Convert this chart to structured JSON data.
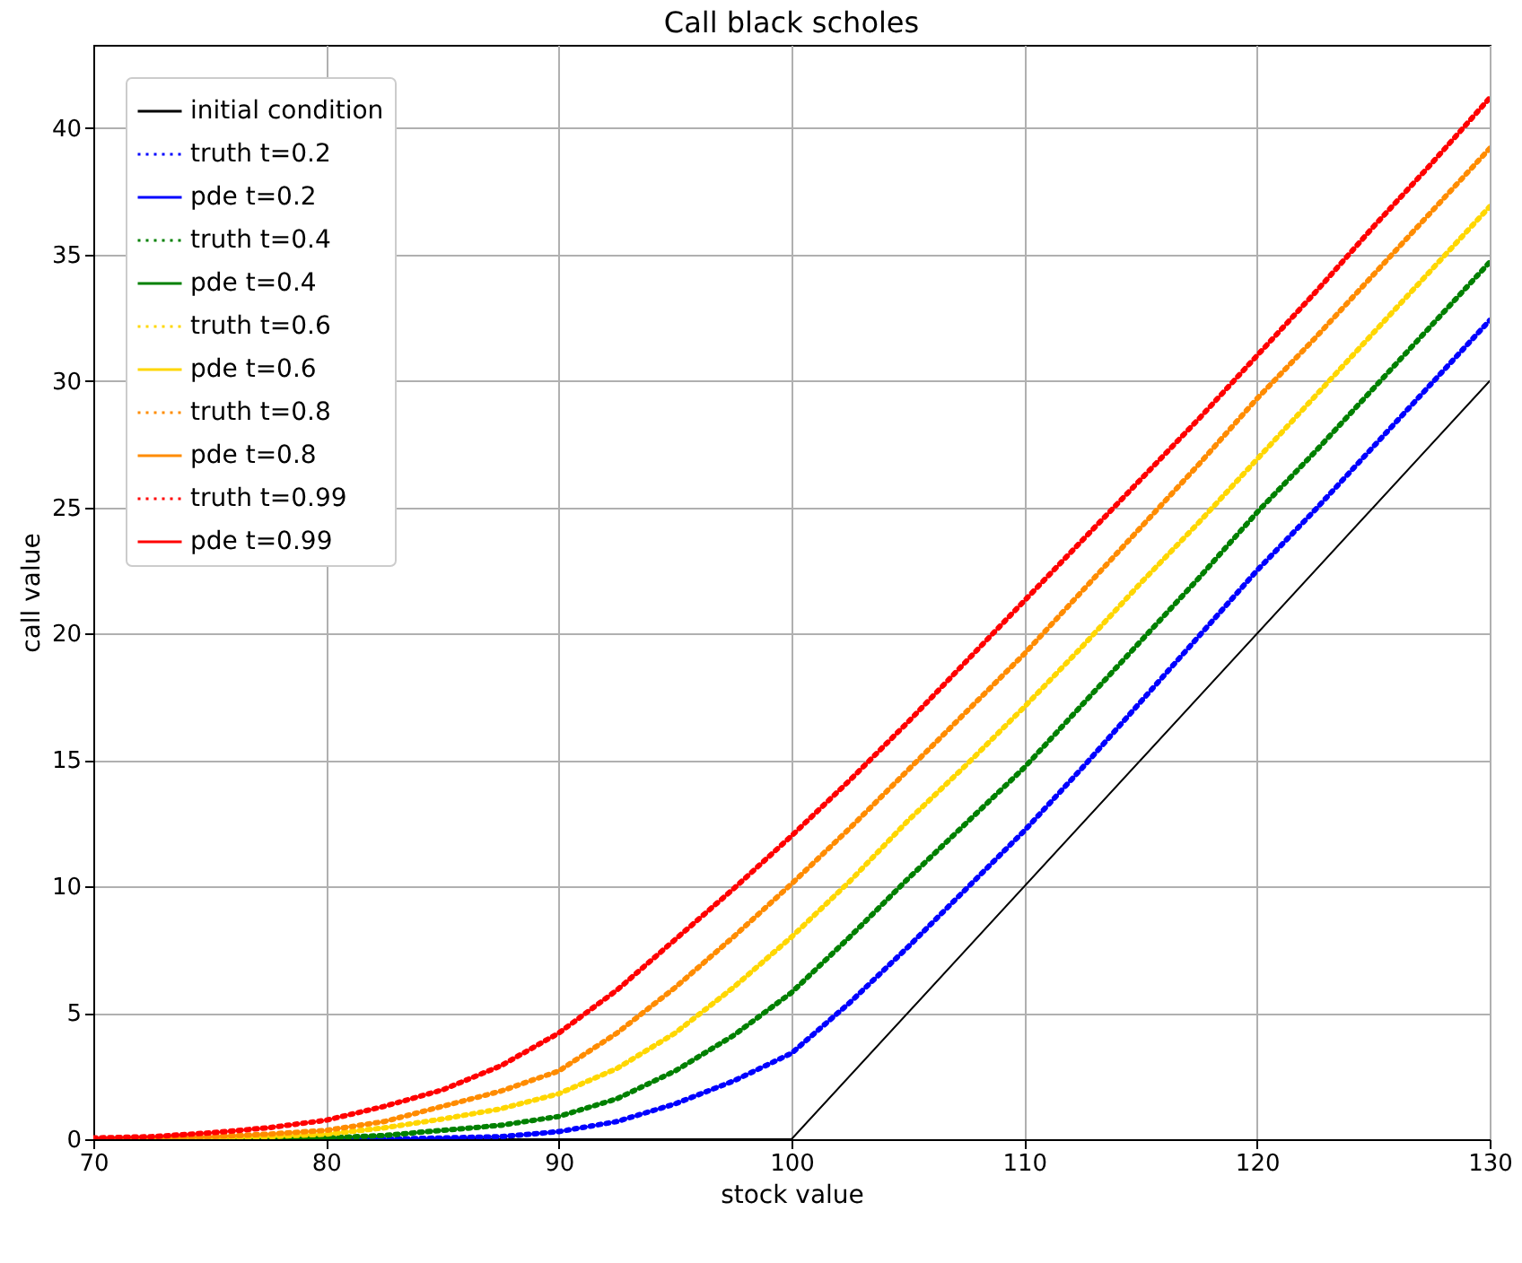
{
  "chart_data": {
    "type": "line",
    "title": "Call black scholes",
    "xlabel": "stock value",
    "ylabel": "call value",
    "x": [
      70,
      72.5,
      75,
      77.5,
      80,
      82.5,
      85,
      87.5,
      90,
      92.5,
      95,
      97.5,
      100,
      102.5,
      105,
      107.5,
      110,
      112.5,
      115,
      117.5,
      120,
      122.5,
      125,
      127.5,
      130
    ],
    "xlim": [
      70,
      130
    ],
    "ylim": [
      0,
      43.3
    ],
    "xticks": [
      70,
      80,
      90,
      100,
      110,
      120,
      130
    ],
    "yticks": [
      0,
      5,
      10,
      15,
      20,
      25,
      30,
      35,
      40
    ],
    "grid": true,
    "legend": "top left",
    "series": [
      {
        "name": "initial condition",
        "color": "#000000",
        "line_style": "solid",
        "x": [
          70,
          100,
          130
        ],
        "values": [
          0,
          0,
          30
        ]
      },
      {
        "name": "truth t=0.2",
        "color": "#0000ff",
        "line_style": "dotted",
        "values": [
          null,
          null,
          null,
          0,
          0,
          0,
          0.05,
          0.1,
          0.3,
          0.7,
          1.4,
          2.3,
          3.4,
          5.4,
          7.6,
          9.9,
          12.2,
          14.7,
          17.3,
          19.9,
          22.5,
          24.9,
          27.4,
          29.9,
          32.4
        ]
      },
      {
        "name": "pde t=0.2",
        "color": "#0000ff",
        "line_style": "solid",
        "values": [
          null,
          null,
          null,
          0,
          0,
          0,
          0.05,
          0.1,
          0.3,
          0.7,
          1.4,
          2.3,
          3.4,
          5.4,
          7.6,
          9.9,
          12.2,
          14.7,
          17.3,
          19.9,
          22.5,
          24.9,
          27.4,
          29.9,
          32.4
        ]
      },
      {
        "name": "truth t=0.4",
        "color": "#008000",
        "line_style": "dotted",
        "values": [
          null,
          null,
          0,
          0.02,
          0.05,
          0.15,
          0.35,
          0.55,
          0.9,
          1.6,
          2.7,
          4.1,
          5.8,
          8.0,
          10.3,
          12.5,
          14.7,
          17.2,
          19.7,
          22.2,
          24.8,
          27.2,
          29.7,
          32.2,
          34.7
        ]
      },
      {
        "name": "pde t=0.4",
        "color": "#008000",
        "line_style": "solid",
        "values": [
          null,
          null,
          0,
          0.02,
          0.05,
          0.15,
          0.35,
          0.55,
          0.9,
          1.6,
          2.7,
          4.1,
          5.8,
          8.0,
          10.3,
          12.5,
          14.7,
          17.2,
          19.7,
          22.2,
          24.8,
          27.2,
          29.7,
          32.2,
          34.7
        ]
      },
      {
        "name": "truth t=0.6",
        "color": "#ffd700",
        "line_style": "dotted",
        "values": [
          0,
          0.02,
          0.05,
          0.1,
          0.2,
          0.45,
          0.8,
          1.2,
          1.8,
          2.8,
          4.2,
          6.0,
          8.0,
          10.2,
          12.6,
          14.8,
          17.1,
          19.5,
          22.0,
          24.4,
          26.9,
          29.4,
          31.9,
          34.4,
          36.9
        ]
      },
      {
        "name": "pde t=0.6",
        "color": "#ffd700",
        "line_style": "solid",
        "values": [
          0,
          0.02,
          0.05,
          0.1,
          0.2,
          0.45,
          0.8,
          1.2,
          1.8,
          2.8,
          4.2,
          6.0,
          8.0,
          10.2,
          12.6,
          14.8,
          17.1,
          19.5,
          22.0,
          24.4,
          26.9,
          29.4,
          31.9,
          34.4,
          36.9
        ]
      },
      {
        "name": "truth t=0.8",
        "color": "#ff8c00",
        "line_style": "dotted",
        "values": [
          0.02,
          0.05,
          0.1,
          0.2,
          0.35,
          0.7,
          1.3,
          1.9,
          2.7,
          4.2,
          6.0,
          8.0,
          10.1,
          12.3,
          14.6,
          16.9,
          19.2,
          21.7,
          24.2,
          26.7,
          29.3,
          31.7,
          34.2,
          36.7,
          39.2
        ]
      },
      {
        "name": "pde t=0.8",
        "color": "#ff8c00",
        "line_style": "solid",
        "values": [
          0.02,
          0.05,
          0.1,
          0.2,
          0.35,
          0.7,
          1.3,
          1.9,
          2.7,
          4.2,
          6.0,
          8.0,
          10.1,
          12.3,
          14.6,
          16.9,
          19.2,
          21.7,
          24.2,
          26.7,
          29.3,
          31.7,
          34.2,
          36.7,
          39.2
        ]
      },
      {
        "name": "truth t=0.99",
        "color": "#ff0000",
        "line_style": "dotted",
        "values": [
          0.05,
          0.1,
          0.25,
          0.45,
          0.75,
          1.3,
          1.95,
          2.9,
          4.2,
          5.9,
          7.9,
          9.9,
          12.0,
          14.2,
          16.5,
          18.9,
          21.3,
          23.7,
          26.1,
          28.5,
          31.0,
          33.5,
          36.1,
          38.6,
          41.2
        ]
      },
      {
        "name": "pde t=0.99",
        "color": "#ff0000",
        "line_style": "solid",
        "values": [
          0.05,
          0.1,
          0.25,
          0.45,
          0.75,
          1.3,
          1.95,
          2.9,
          4.2,
          5.9,
          7.9,
          9.9,
          12.0,
          14.2,
          16.5,
          18.9,
          21.3,
          23.7,
          26.1,
          28.5,
          31.0,
          33.5,
          36.1,
          38.6,
          41.2
        ]
      }
    ]
  }
}
